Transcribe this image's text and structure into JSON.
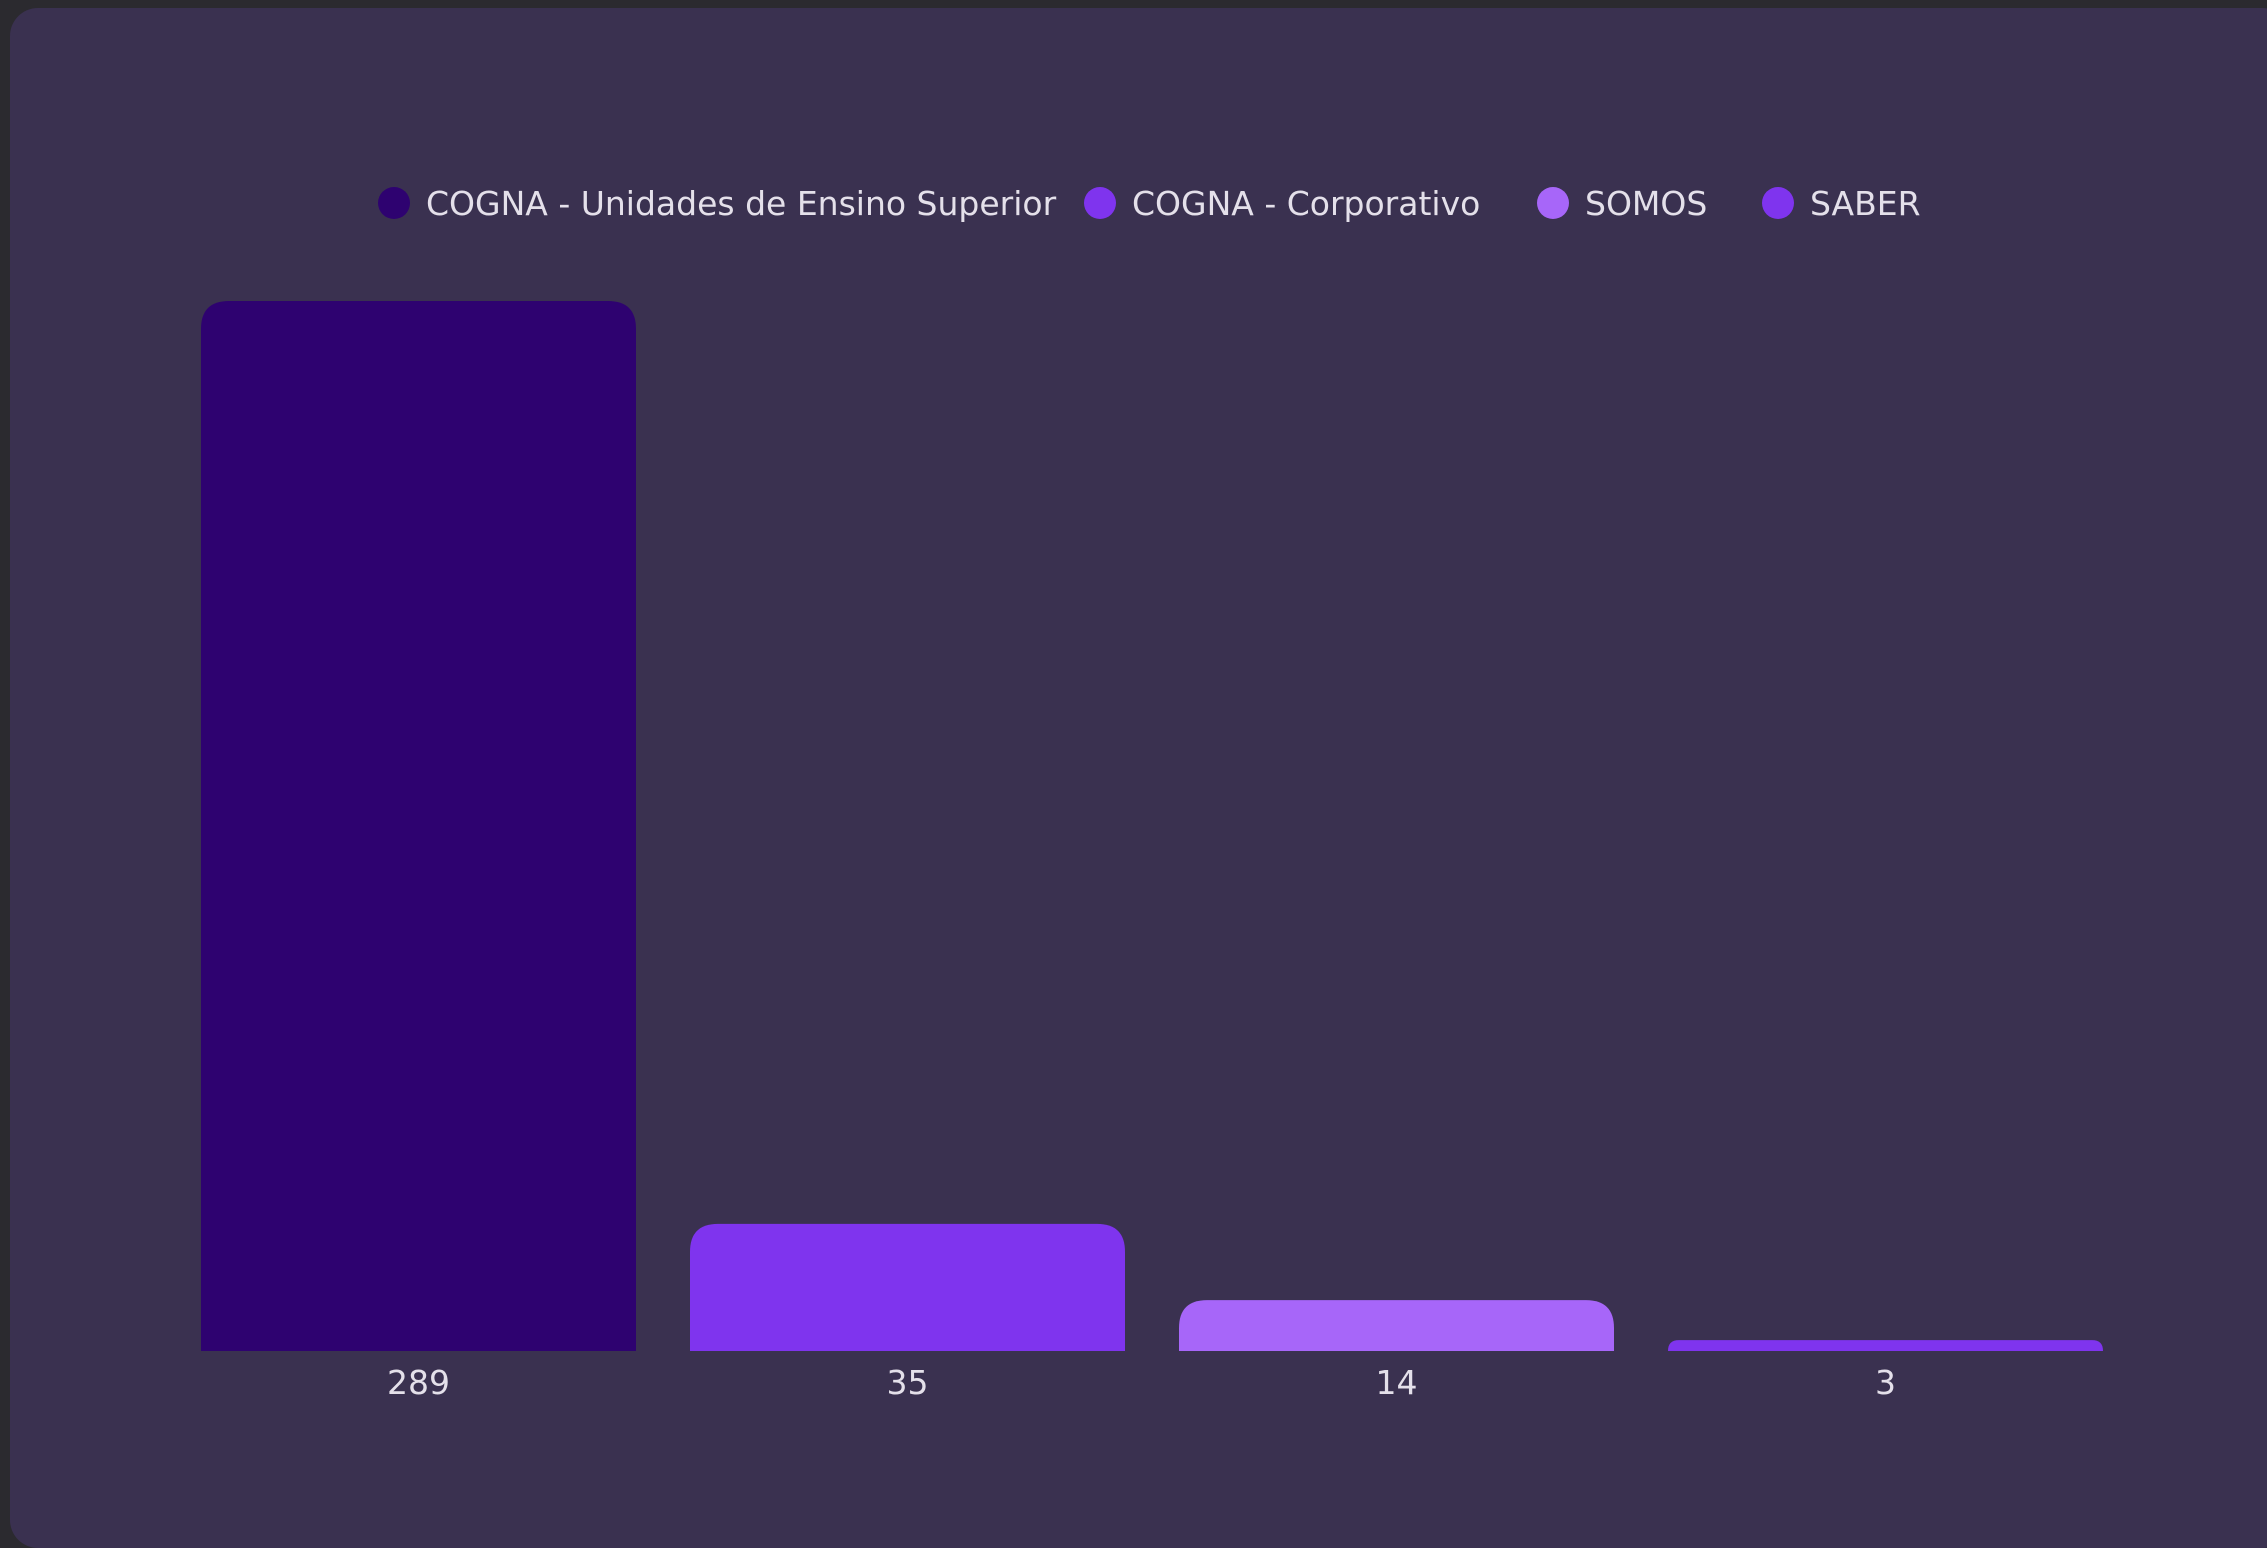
{
  "chart_data": {
    "type": "bar",
    "title": "",
    "xlabel": "",
    "ylabel": "",
    "grid": false,
    "legend_placement": "top-center",
    "categories": [
      "289",
      "35",
      "14",
      "3"
    ],
    "values": [
      289,
      35,
      14,
      3
    ],
    "ylim": [
      0,
      289
    ],
    "series": [
      {
        "name": "COGNA - Unidades de Ensino Superior",
        "value": 289,
        "color": "#2e0270"
      },
      {
        "name": "COGNA - Corporativo",
        "value": 35,
        "color": "#7f34ee"
      },
      {
        "name": "SOMOS",
        "value": 14,
        "color": "#a766f9"
      },
      {
        "name": "SABER",
        "value": 3,
        "color": "#7f34ee"
      }
    ]
  },
  "colors": {
    "background": "#2b2a2f",
    "card": "#3a3150",
    "text": "#e4e0ea"
  }
}
